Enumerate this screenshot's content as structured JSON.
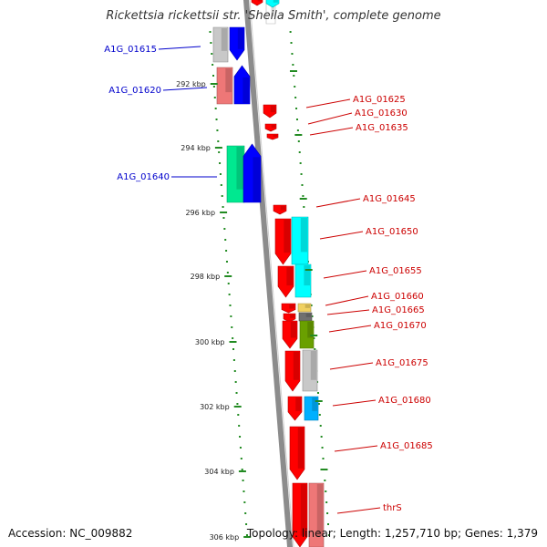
{
  "title": "Rickettsia rickettsii str. 'Sheila Smith', complete genome",
  "footer": {
    "accession": "Accession: NC_009882",
    "summary": "Topology: linear; Length: 1,257,710 bp; Genes: 1,379"
  },
  "ruler": {
    "ticks": [
      "292 kbp",
      "294 kbp",
      "296 kbp",
      "298 kbp",
      "300 kbp",
      "302 kbp",
      "304 kbp",
      "306 kbp"
    ]
  },
  "colors": {
    "left_label": "#0000cc",
    "right_label": "#cc0000",
    "tick": "#228b22",
    "backbone": "#8c8c8c"
  },
  "genes_left": [
    {
      "label": "A1G_01615"
    },
    {
      "label": "A1G_01620"
    },
    {
      "label": "A1G_01640"
    }
  ],
  "genes_right": [
    {
      "label": "A1G_01625"
    },
    {
      "label": "A1G_01630"
    },
    {
      "label": "A1G_01635"
    },
    {
      "label": "A1G_01645"
    },
    {
      "label": "A1G_01650"
    },
    {
      "label": "A1G_01655"
    },
    {
      "label": "A1G_01660"
    },
    {
      "label": "A1G_01665"
    },
    {
      "label": "A1G_01670"
    },
    {
      "label": "A1G_01675"
    },
    {
      "label": "A1G_01680"
    },
    {
      "label": "A1G_01685"
    },
    {
      "label": "thrS"
    }
  ]
}
